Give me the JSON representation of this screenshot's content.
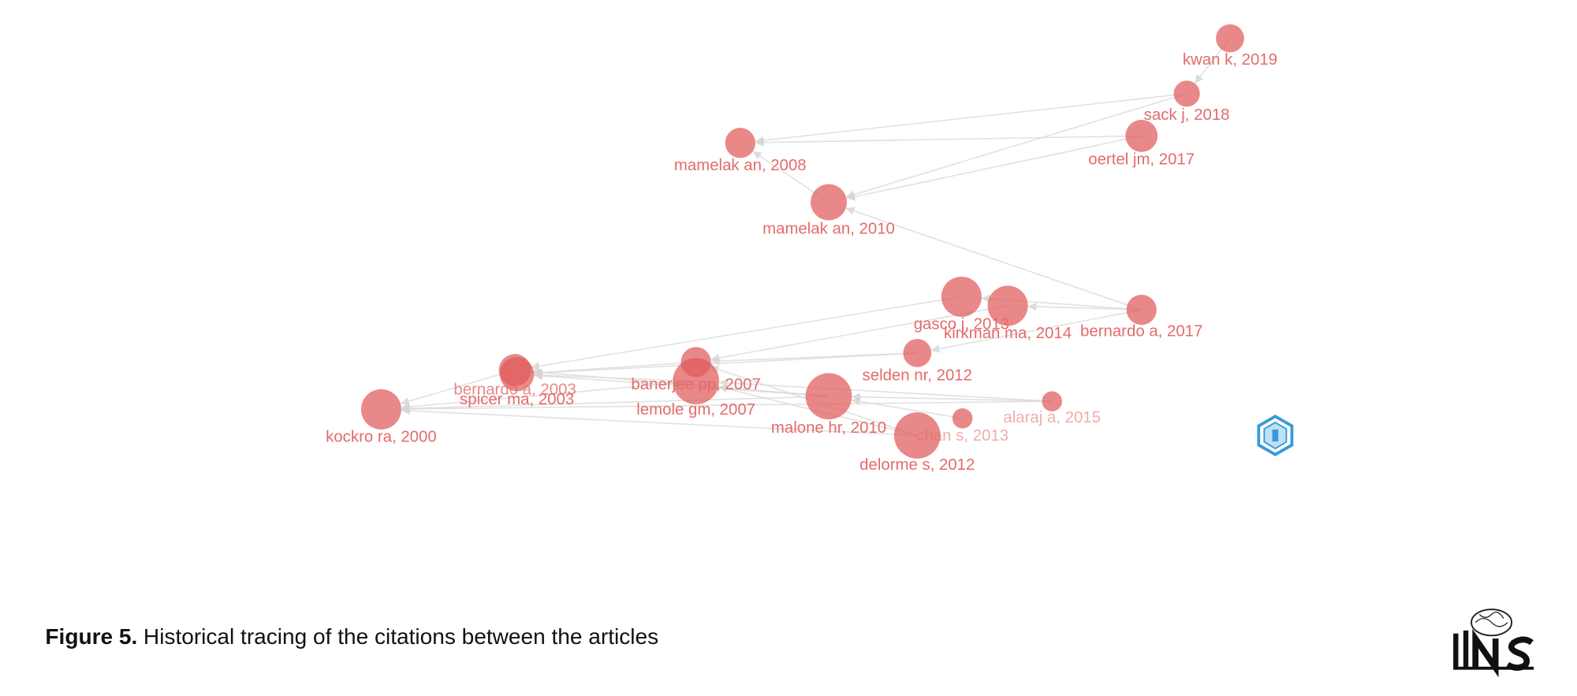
{
  "nodes": [
    {
      "label": "kwan k, 2019"
    },
    {
      "label": "sack j, 2018"
    },
    {
      "label": "oertel jm, 2017"
    },
    {
      "label": "mamelak an, 2008"
    },
    {
      "label": "mamelak an, 2010"
    },
    {
      "label": "gasco j, 2013"
    },
    {
      "label": "kirkman ma, 2014"
    },
    {
      "label": "bernardo a, 2017"
    },
    {
      "label": "selden nr, 2012"
    },
    {
      "label": "banerjee pp, 2007"
    },
    {
      "label": "bernardo a, 2003"
    },
    {
      "label": "spicer ma, 2003"
    },
    {
      "label": "lemole gm, 2007"
    },
    {
      "label": "malone hr, 2010"
    },
    {
      "label": "alaraj a, 2015"
    },
    {
      "label": "chan s, 2013"
    },
    {
      "label": "delorme s, 2012"
    },
    {
      "label": "kockro ra, 2000"
    }
  ],
  "caption": {
    "label": "Figure 5.",
    "text": "Historical tracing of the citations between the articles"
  }
}
